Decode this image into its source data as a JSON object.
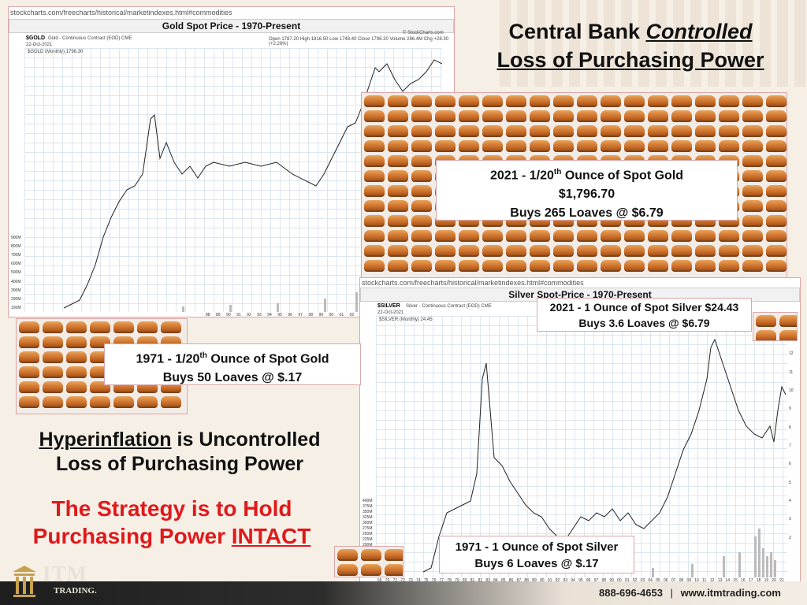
{
  "headline": {
    "line1_a": "Central Bank ",
    "line1_b": "Controlled",
    "line2": "Loss of Purchasing Power"
  },
  "gold_chart": {
    "url": "stockcharts.com/freecharts/historical/marketindexes.html#commodities",
    "title": "Gold Spot Price - 1970-Present",
    "symbol": "$GOLD",
    "symbol_desc": "Gold - Continuous Contract (EOD) CME",
    "date": "22-Oct-2021",
    "legend": "$GOLD (Monthly) 1796.30",
    "ohlc": "Open 1787.20  High 1816.50  Low 1748.40  Close 1796.30  Volume 286.4M  Chg +28.30 (+2.26%)",
    "watermark": "© StockCharts.com",
    "y_ticks": [
      "900M",
      "800M",
      "700M",
      "600M",
      "500M",
      "400M",
      "300M",
      "200M",
      "100M"
    ],
    "x_ticks": [
      "88",
      "89",
      "90",
      "91",
      "92",
      "93",
      "94",
      "95",
      "96",
      "97",
      "98",
      "99",
      "00",
      "01",
      "02",
      "03",
      "04",
      "05",
      "06",
      "07",
      "08",
      "09",
      "10"
    ]
  },
  "silver_chart": {
    "url": "stockcharts.com/freecharts/historical/marketindexes.html#commodities",
    "title": "Silver Spot-Price - 1970-Present",
    "symbol": "$SILVER",
    "symbol_desc": "Silver - Continuous Contract (EOD) CME",
    "date": "22-Oct-2021",
    "legend": "$SILVER (Monthly) 24.45",
    "y_ticks": [
      "400M",
      "375M",
      "350M",
      "325M",
      "300M",
      "275M",
      "250M",
      "225M",
      "200M",
      "175M"
    ],
    "right_ticks": [
      "13",
      "12",
      "11",
      "10",
      "9",
      "8",
      "7",
      "6",
      "5",
      "4",
      "3",
      "2"
    ],
    "x_ticks": [
      "69",
      "70",
      "71",
      "72",
      "73",
      "74",
      "75",
      "76",
      "77",
      "78",
      "79",
      "80",
      "81",
      "82",
      "83",
      "84",
      "85",
      "86",
      "87",
      "88",
      "89",
      "90",
      "91",
      "92",
      "93",
      "94",
      "95",
      "96",
      "97",
      "98",
      "99",
      "00",
      "01",
      "02",
      "03",
      "04",
      "05",
      "06",
      "07",
      "08",
      "09",
      "10",
      "11",
      "12",
      "13",
      "14",
      "15",
      "16",
      "17",
      "18",
      "19",
      "20",
      "21"
    ]
  },
  "gold_2021": {
    "line1_a": "2021 - 1/20",
    "line1_sup": "th",
    "line1_b": " Ounce of Spot Gold",
    "line2": "$1,796.70",
    "line3": "Buys 265 Loaves @ $6.79"
  },
  "gold_1971": {
    "line1_a": "1971 - 1/20",
    "line1_sup": "th",
    "line1_b": " Ounce of Spot Gold",
    "line2": "Buys 50 Loaves @ $.17"
  },
  "silver_2021": {
    "line1": "2021 - 1 Ounce of Spot Silver $24.43",
    "line2": "Buys 3.6 Loaves @ $6.79"
  },
  "silver_1971": {
    "line1": "1971 - 1 Ounce of Spot Silver",
    "line2": "Buys 6 Loaves @ $.17"
  },
  "hyperinflation": {
    "word": "Hyperinflation",
    "rest1": " is Uncontrolled",
    "line2": "Loss of Purchasing Power"
  },
  "strategy": {
    "line1": "The Strategy is to Hold",
    "line2_a": "Purchasing Power ",
    "line2_b": "INTACT"
  },
  "footer": {
    "brand": "ITM",
    "brand_sub": "TRADING.",
    "phone": "888-696-4653",
    "separator": "|",
    "website": "www.itmtrading.com"
  },
  "colors": {
    "accent_red": "#e0191b",
    "loaf": "#c86a25",
    "chart_line": "#222222"
  }
}
